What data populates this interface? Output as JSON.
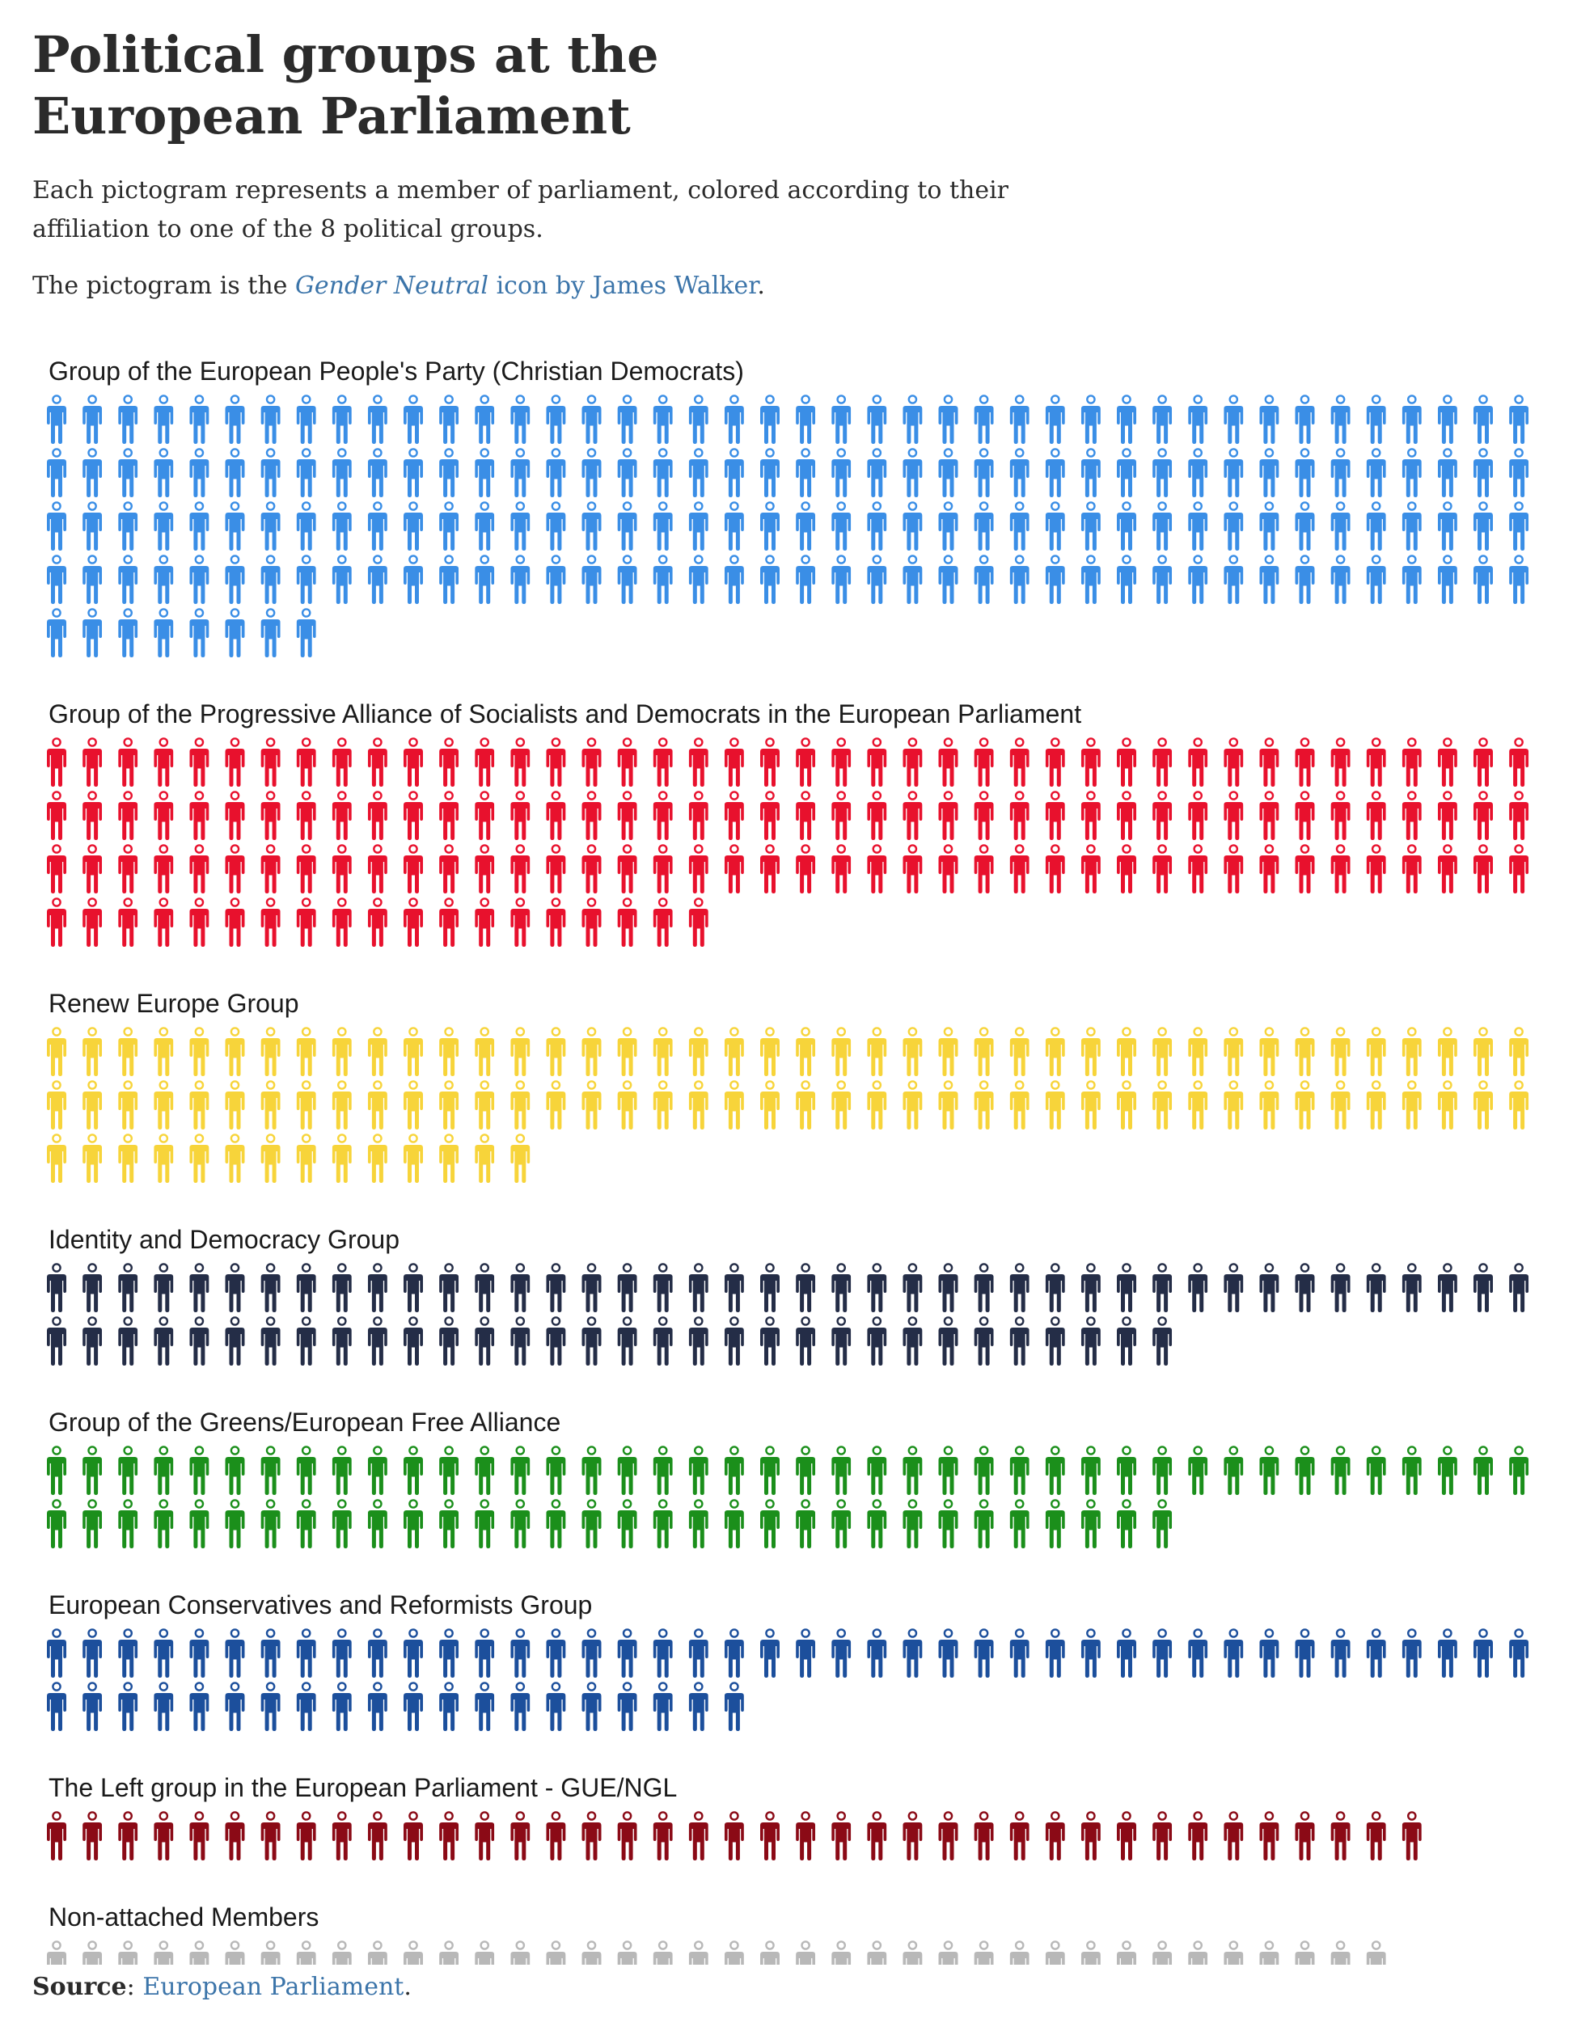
{
  "header": {
    "title": "Political groups at the European Parliament",
    "description": "Each pictogram represents a member of parliament, colored according to their affiliation to one of the 8 political groups.",
    "credit_prefix": "The pictogram is the ",
    "credit_icon_name": "Gender Neutral",
    "credit_middle": " icon by James Walker",
    "credit_suffix": "."
  },
  "footer": {
    "source_label": "Source",
    "source_sep": ": ",
    "source_link": "European Parliament",
    "source_end": "."
  },
  "chart_data": {
    "type": "pictogram",
    "unit": "member of parliament",
    "icon": "person-icon",
    "icons_per_row": 42,
    "groups": [
      {
        "name": "Group of the European People's Party (Christian Democrats)",
        "count": 176,
        "color": "#3a8ee6"
      },
      {
        "name": "Group of the Progressive Alliance of Socialists and Democrats in the European Parliament",
        "count": 145,
        "color": "#e8112d"
      },
      {
        "name": "Renew Europe Group",
        "count": 98,
        "color": "#f7d43a"
      },
      {
        "name": "Identity and Democracy Group",
        "count": 74,
        "color": "#242d47"
      },
      {
        "name": "Group of the Greens/European Free Alliance",
        "count": 74,
        "color": "#1b8f1b"
      },
      {
        "name": "European Conservatives and Reformists Group",
        "count": 62,
        "color": "#1c4f9c"
      },
      {
        "name": "The Left group in the European Parliament - GUE/NGL",
        "count": 39,
        "color": "#8b0a16"
      },
      {
        "name": "Non-attached Members",
        "count": 38,
        "color": "#b8b8b8"
      }
    ]
  }
}
